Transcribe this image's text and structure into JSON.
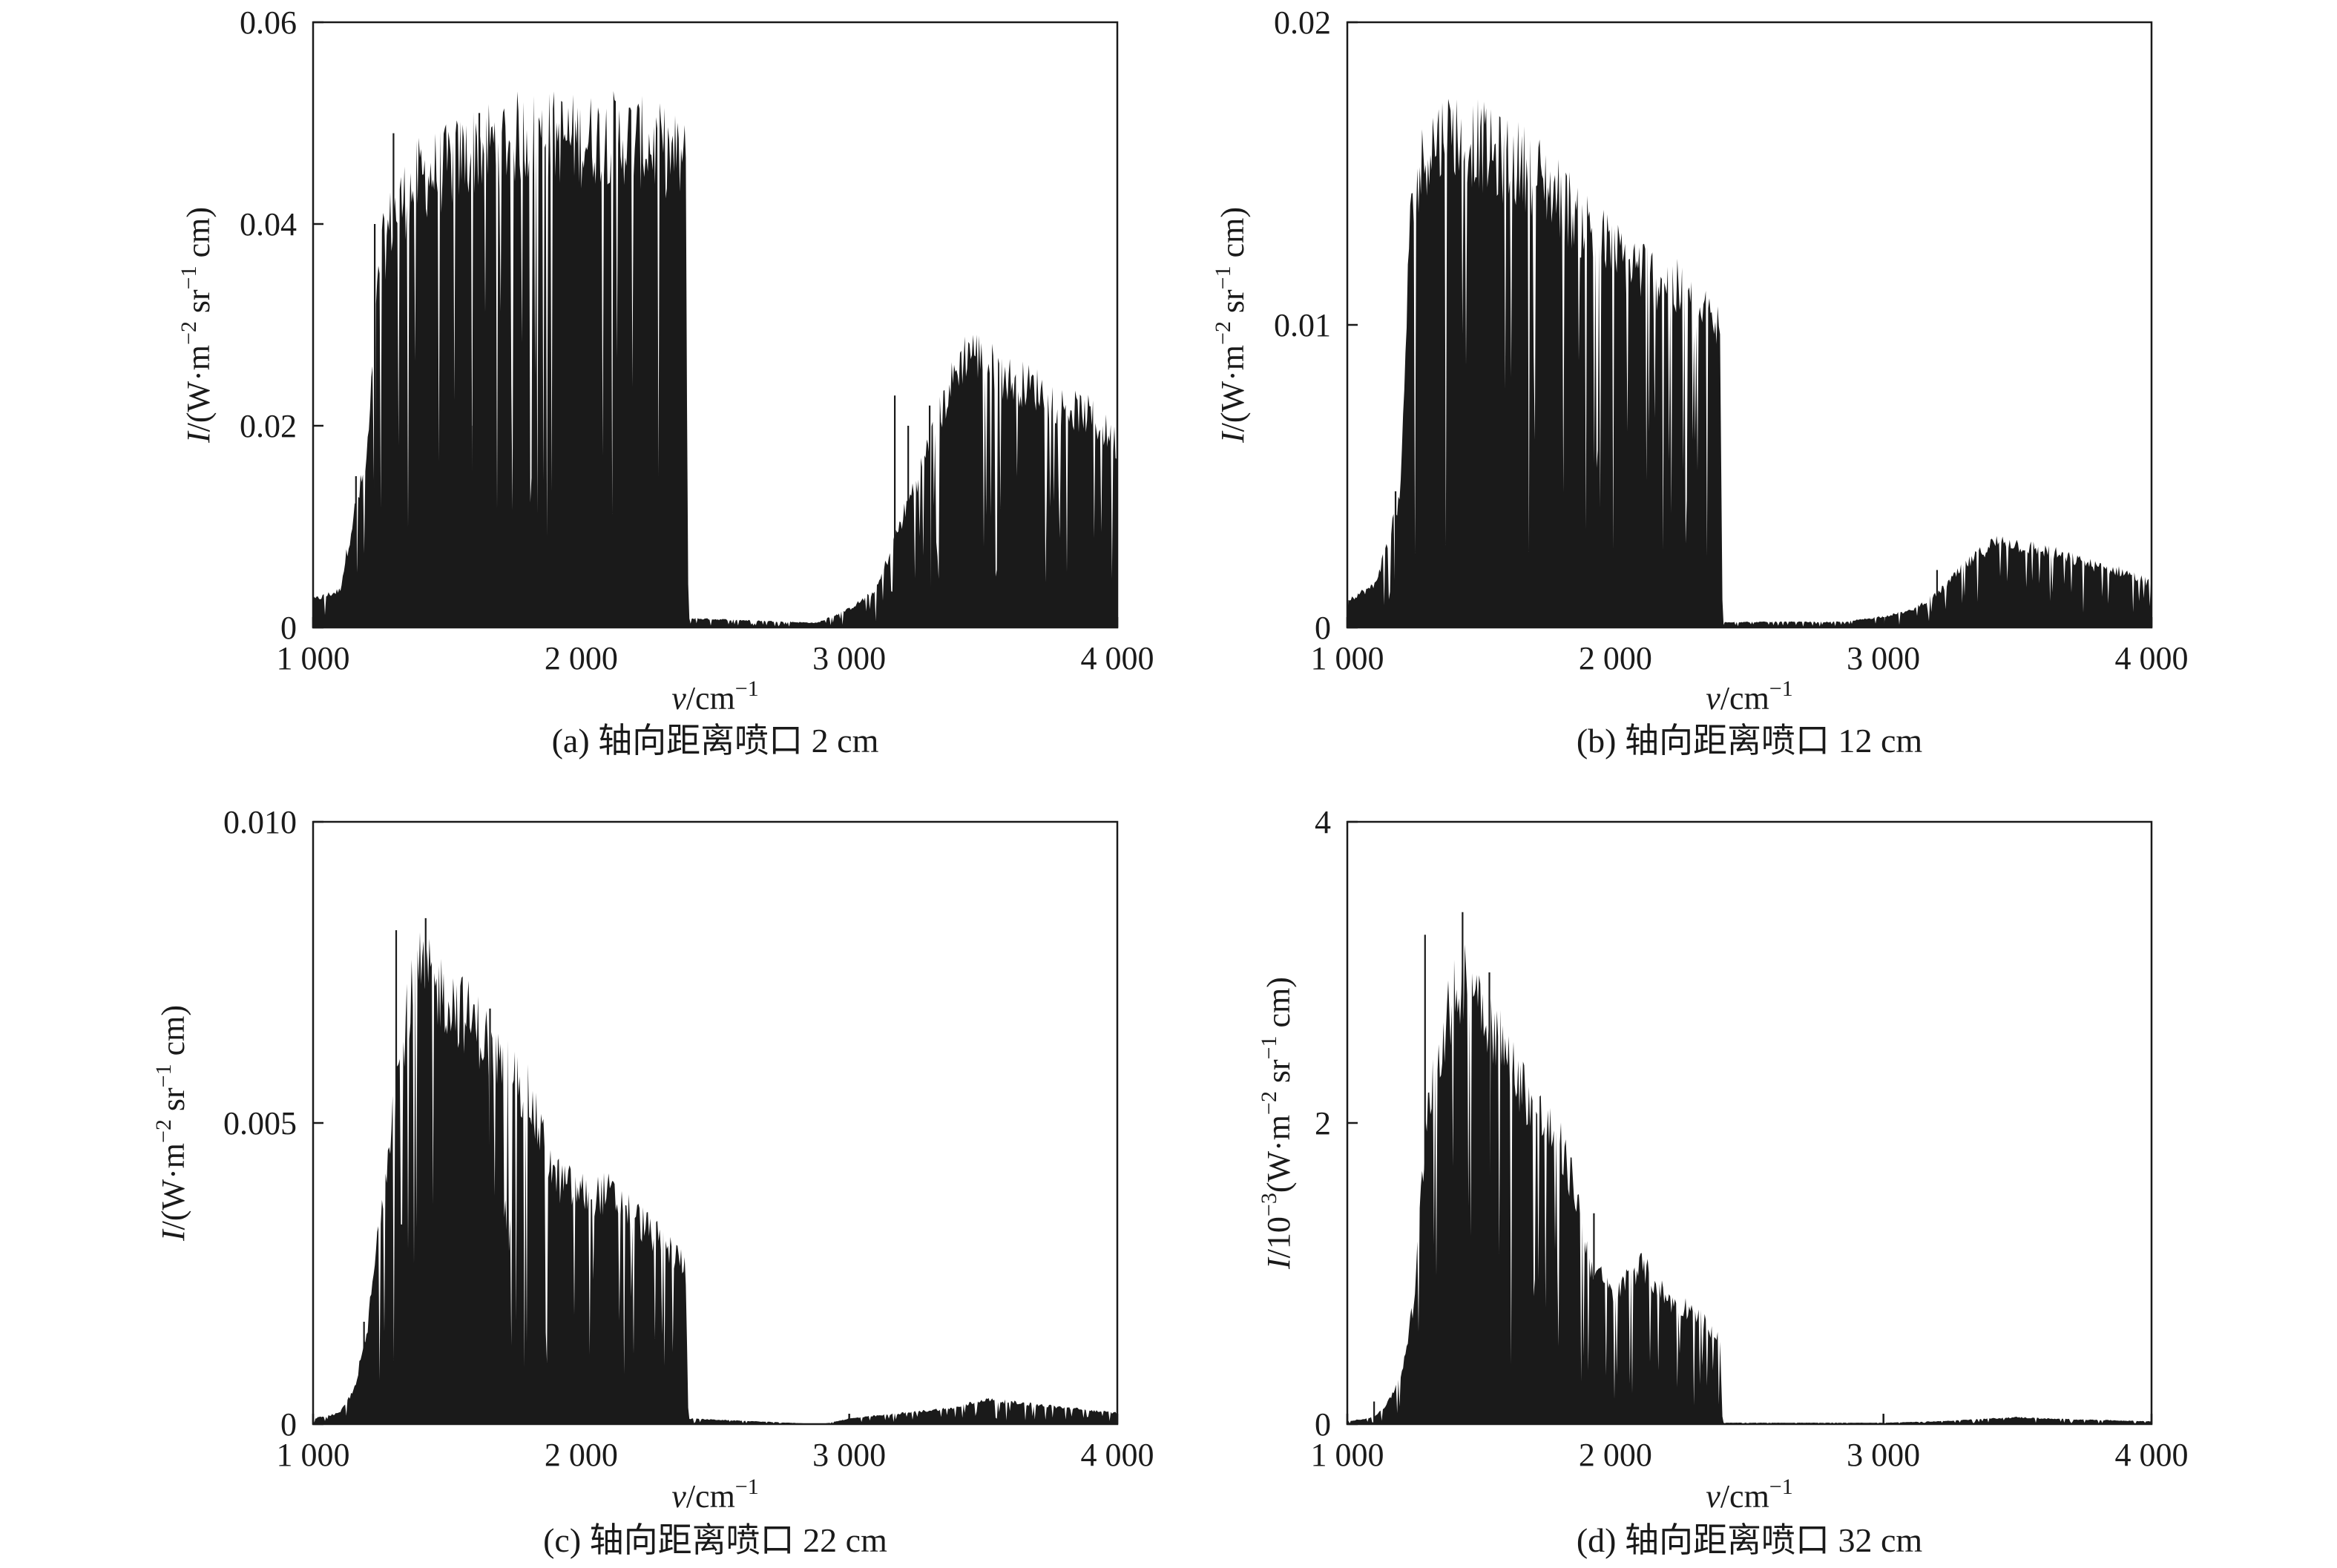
{
  "chart_data": [
    {
      "type": "line",
      "caption": "(a) 轴向距离喷口 2 cm",
      "xlabel": {
        "var": "v",
        "unit": "/cm",
        "sup": "−1"
      },
      "ylabel": {
        "var": "I",
        "pre": "/(W·m",
        "sup1": "−2",
        "mid": " sr",
        "sup2": "−1",
        "post": " cm)"
      },
      "xlim": [
        1000,
        4000
      ],
      "ylim": [
        0,
        0.06
      ],
      "xticks": [
        1000,
        2000,
        3000,
        4000
      ],
      "xtick_labels": [
        "1 000",
        "2 000",
        "3 000",
        "4 000"
      ],
      "yticks": [
        0,
        0.02,
        0.04,
        0.06
      ],
      "ytick_labels": [
        "0",
        "0.02",
        "0.04",
        "0.06"
      ],
      "envelope": [
        [
          1000,
          0.003
        ],
        [
          1100,
          0.004
        ],
        [
          1150,
          0.012
        ],
        [
          1200,
          0.018
        ],
        [
          1250,
          0.04
        ],
        [
          1300,
          0.045
        ],
        [
          1400,
          0.049
        ],
        [
          1500,
          0.05
        ],
        [
          1600,
          0.052
        ],
        [
          1700,
          0.053
        ],
        [
          1800,
          0.0535
        ],
        [
          1900,
          0.0535
        ],
        [
          2000,
          0.053
        ],
        [
          2100,
          0.0535
        ],
        [
          2200,
          0.053
        ],
        [
          2300,
          0.052
        ],
        [
          2390,
          0.0505
        ],
        [
          2400,
          0.001
        ],
        [
          2880,
          0.0005
        ],
        [
          3000,
          0.002
        ],
        [
          3100,
          0.004
        ],
        [
          3200,
          0.012
        ],
        [
          3300,
          0.02
        ],
        [
          3400,
          0.028
        ],
        [
          3450,
          0.0305
        ],
        [
          3500,
          0.029
        ],
        [
          3600,
          0.027
        ],
        [
          3700,
          0.026
        ],
        [
          3800,
          0.024
        ],
        [
          3900,
          0.023
        ],
        [
          4000,
          0.02
        ]
      ],
      "notable_lines": [
        [
          1160,
          0.015
        ],
        [
          1230,
          0.04
        ],
        [
          1300,
          0.049
        ],
        [
          1590,
          0.02
        ],
        [
          1620,
          0.051
        ],
        [
          1950,
          0.03
        ],
        [
          3170,
          0.023
        ],
        [
          3220,
          0.02
        ],
        [
          3300,
          0.022
        ]
      ]
    },
    {
      "type": "line",
      "caption": "(b) 轴向距离喷口 12 cm",
      "xlabel": {
        "var": "v",
        "unit": "/cm",
        "sup": "−1"
      },
      "ylabel": {
        "var": "I",
        "pre": "/(W·m",
        "sup1": "−2",
        "mid": " sr",
        "sup2": "−1",
        "post": " cm)"
      },
      "xlim": [
        1000,
        4000
      ],
      "ylim": [
        0,
        0.02
      ],
      "xticks": [
        1000,
        2000,
        3000,
        4000
      ],
      "xtick_labels": [
        "1 000",
        "2 000",
        "3 000",
        "4 000"
      ],
      "yticks": [
        0,
        0.01,
        0.02
      ],
      "ytick_labels": [
        "0",
        "0.01",
        "0.02"
      ],
      "envelope": [
        [
          1000,
          0.001
        ],
        [
          1100,
          0.0015
        ],
        [
          1150,
          0.003
        ],
        [
          1200,
          0.005
        ],
        [
          1230,
          0.014
        ],
        [
          1260,
          0.016
        ],
        [
          1300,
          0.0175
        ],
        [
          1400,
          0.018
        ],
        [
          1500,
          0.0175
        ],
        [
          1550,
          0.017
        ],
        [
          1600,
          0.017
        ],
        [
          1700,
          0.0165
        ],
        [
          1800,
          0.0155
        ],
        [
          1900,
          0.0145
        ],
        [
          2000,
          0.0135
        ],
        [
          2100,
          0.013
        ],
        [
          2200,
          0.0125
        ],
        [
          2300,
          0.0115
        ],
        [
          2390,
          0.0108
        ],
        [
          2400,
          0.0002
        ],
        [
          2850,
          0.0002
        ],
        [
          3000,
          0.0004
        ],
        [
          3100,
          0.0006
        ],
        [
          3200,
          0.0012
        ],
        [
          3300,
          0.0022
        ],
        [
          3400,
          0.003
        ],
        [
          3450,
          0.0032
        ],
        [
          3500,
          0.003
        ],
        [
          3600,
          0.0028
        ],
        [
          3700,
          0.0025
        ],
        [
          3800,
          0.0022
        ],
        [
          3900,
          0.002
        ],
        [
          4000,
          0.0016
        ]
      ],
      "notable_lines": [
        [
          1130,
          0.002
        ],
        [
          1180,
          0.0045
        ],
        [
          1240,
          0.014
        ],
        [
          1590,
          0.005
        ],
        [
          1970,
          0.0015
        ],
        [
          3200,
          0.0019
        ]
      ]
    },
    {
      "type": "line",
      "caption": "(c) 轴向距离喷口 22 cm",
      "xlabel": {
        "var": "v",
        "unit": "/cm",
        "sup": "−1"
      },
      "ylabel": {
        "var": "I",
        "pre": "/(W·m",
        "sup1": "−2",
        "mid": " sr",
        "sup2": "−1",
        "post": " cm)"
      },
      "xlim": [
        1000,
        4000
      ],
      "ylim": [
        0,
        0.01
      ],
      "xticks": [
        1000,
        2000,
        3000,
        4000
      ],
      "xtick_labels": [
        "1 000",
        "2 000",
        "3 000",
        "4 000"
      ],
      "yticks": [
        0,
        0.005,
        0.01
      ],
      "ytick_labels": [
        "0",
        "0.005",
        "0.010"
      ],
      "envelope": [
        [
          1000,
          0.0001
        ],
        [
          1100,
          0.0002
        ],
        [
          1150,
          0.0006
        ],
        [
          1200,
          0.0016
        ],
        [
          1250,
          0.0038
        ],
        [
          1300,
          0.006
        ],
        [
          1350,
          0.0075
        ],
        [
          1400,
          0.0082
        ],
        [
          1450,
          0.008
        ],
        [
          1500,
          0.0078
        ],
        [
          1600,
          0.0073
        ],
        [
          1700,
          0.0066
        ],
        [
          1800,
          0.006
        ],
        [
          1900,
          0.0045
        ],
        [
          2000,
          0.0042
        ],
        [
          2100,
          0.0042
        ],
        [
          2200,
          0.0038
        ],
        [
          2300,
          0.0033
        ],
        [
          2390,
          0.0029
        ],
        [
          2400,
          0.0001
        ],
        [
          2900,
          0.0
        ],
        [
          3000,
          0.0001
        ],
        [
          3200,
          0.0002
        ],
        [
          3400,
          0.0003
        ],
        [
          3500,
          0.00045
        ],
        [
          3600,
          0.0004
        ],
        [
          3800,
          0.0003
        ],
        [
          4000,
          0.0002
        ]
      ],
      "notable_lines": [
        [
          1190,
          0.0017
        ],
        [
          1310,
          0.0082
        ],
        [
          1420,
          0.0084
        ],
        [
          1580,
          0.002
        ],
        [
          1660,
          0.0069
        ]
      ]
    },
    {
      "type": "line",
      "caption": "(d) 轴向距离喷口 32 cm",
      "xlabel": {
        "var": "v",
        "unit": "/cm",
        "sup": "−1"
      },
      "ylabel": {
        "var": "I",
        "pre": "/10",
        "sup0": "−3",
        "pre2": "(W·m",
        "sup1": "−2",
        "mid": " sr",
        "sup2": "−1",
        "post": " cm)"
      },
      "xlim": [
        1000,
        4000
      ],
      "ylim": [
        0,
        4
      ],
      "xticks": [
        1000,
        2000,
        3000,
        4000
      ],
      "xtick_labels": [
        "1 000",
        "2 000",
        "3 000",
        "4 000"
      ],
      "yticks": [
        0,
        2,
        4
      ],
      "ytick_labels": [
        "0",
        "2",
        "4"
      ],
      "envelope": [
        [
          1000,
          0.02
        ],
        [
          1100,
          0.05
        ],
        [
          1150,
          0.15
        ],
        [
          1200,
          0.35
        ],
        [
          1250,
          0.9
        ],
        [
          1300,
          2.4
        ],
        [
          1350,
          2.8
        ],
        [
          1400,
          3.1
        ],
        [
          1450,
          3.35
        ],
        [
          1500,
          3.1
        ],
        [
          1600,
          2.65
        ],
        [
          1700,
          2.3
        ],
        [
          1800,
          2.0
        ],
        [
          1850,
          1.7
        ],
        [
          1900,
          1.2
        ],
        [
          2000,
          0.9
        ],
        [
          2050,
          1.1
        ],
        [
          2100,
          1.15
        ],
        [
          2200,
          0.9
        ],
        [
          2300,
          0.82
        ],
        [
          2390,
          0.6
        ],
        [
          2400,
          0.01
        ],
        [
          3000,
          0.01
        ],
        [
          3200,
          0.02
        ],
        [
          3500,
          0.05
        ],
        [
          3600,
          0.04
        ],
        [
          4000,
          0.02
        ]
      ],
      "notable_lines": [
        [
          1100,
          0.15
        ],
        [
          1290,
          3.25
        ],
        [
          1430,
          3.4
        ],
        [
          1530,
          3.0
        ],
        [
          1920,
          1.4
        ],
        [
          3000,
          0.06
        ]
      ]
    }
  ]
}
